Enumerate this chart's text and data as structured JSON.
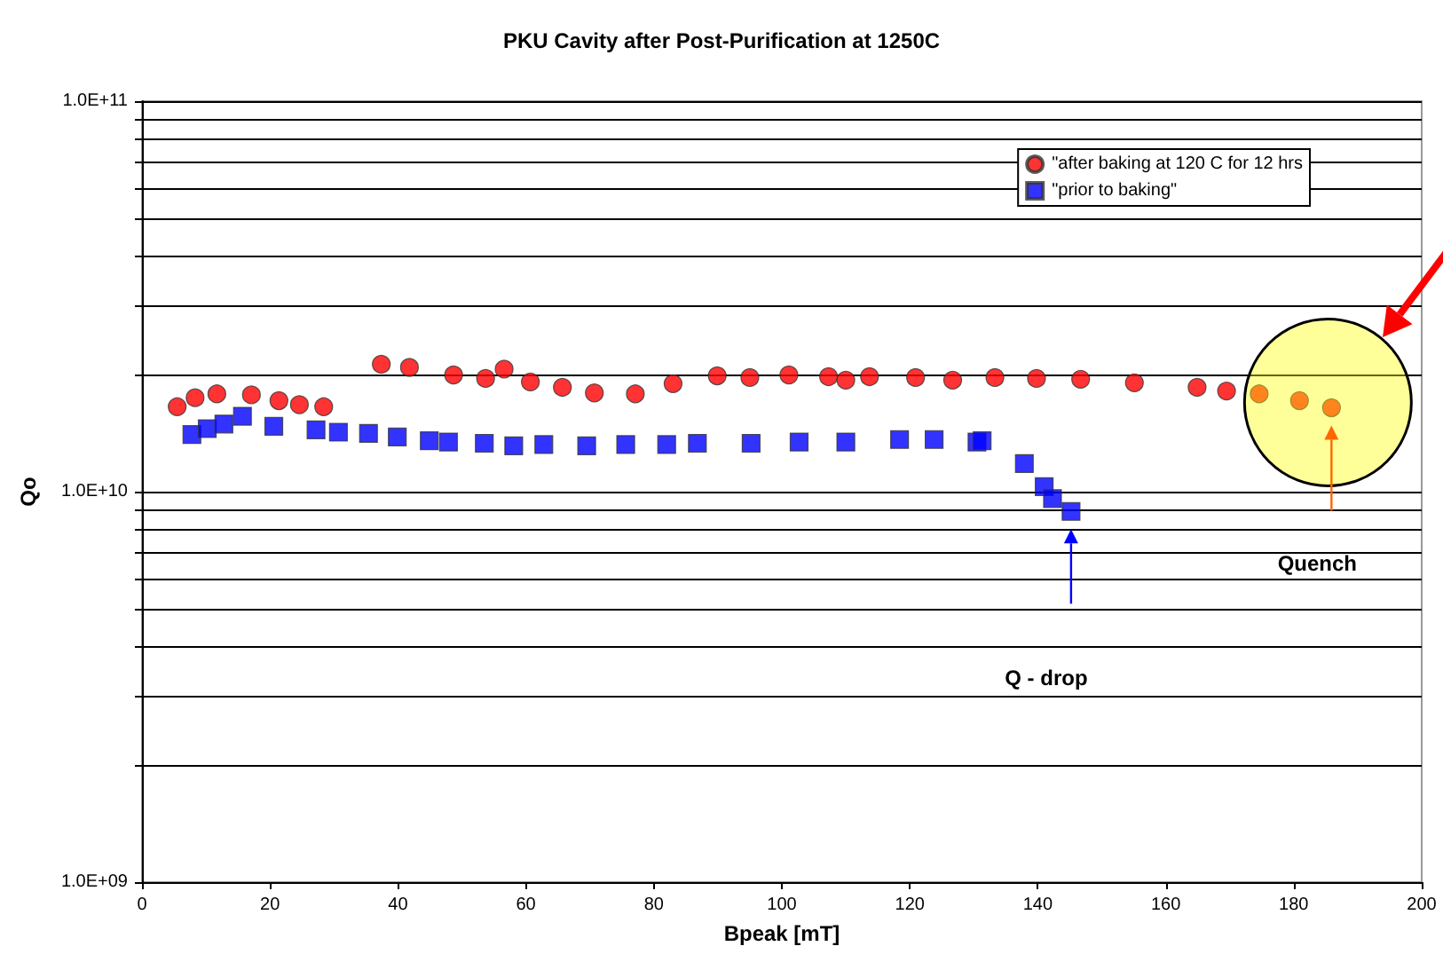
{
  "chart_data": {
    "type": "scatter",
    "title": "PKU Cavity after Post-Purification at 1250C",
    "xlabel": "Bpeak [mT]",
    "ylabel": "Qo",
    "series": [
      {
        "name": "\"after baking at 120 C for 12 hrs",
        "color": "#ff0000",
        "marker": "circle",
        "x": [
          5.5,
          8.3,
          11.7,
          17.1,
          21.4,
          24.6,
          28.4,
          37.4,
          41.8,
          48.7,
          53.7,
          56.6,
          60.7,
          65.7,
          70.7,
          77.1,
          83.0,
          89.9,
          95.0,
          101.1,
          107.3,
          110.0,
          113.7,
          120.9,
          126.7,
          133.3,
          139.8,
          146.7,
          155.1,
          164.9,
          169.5,
          174.6,
          180.9,
          185.9
        ],
        "values": [
          16500000000.0,
          17400000000.0,
          17800000000.0,
          17700000000.0,
          17100000000.0,
          16700000000.0,
          16500000000.0,
          21200000000.0,
          20800000000.0,
          19900000000.0,
          19500000000.0,
          20600000000.0,
          19100000000.0,
          18500000000.0,
          17900000000.0,
          17800000000.0,
          18900000000.0,
          19800000000.0,
          19600000000.0,
          19900000000.0,
          19700000000.0,
          19300000000.0,
          19700000000.0,
          19600000000.0,
          19300000000.0,
          19600000000.0,
          19500000000.0,
          19400000000.0,
          19000000000.0,
          18500000000.0,
          18100000000.0,
          17800000000.0,
          17100000000.0,
          16400000000.0
        ]
      },
      {
        "name": "\"prior to baking\"",
        "color": "#0000ff",
        "marker": "square",
        "x": [
          7.8,
          10.2,
          12.8,
          15.7,
          20.6,
          27.2,
          30.7,
          35.4,
          39.9,
          44.9,
          47.9,
          53.5,
          58.1,
          62.8,
          69.5,
          75.6,
          82.0,
          86.8,
          95.2,
          102.7,
          110.0,
          118.4,
          123.8,
          130.5,
          131.3,
          137.9,
          141.0,
          142.3,
          145.2
        ],
        "values": [
          14000000000.0,
          14500000000.0,
          14900000000.0,
          15600000000.0,
          14700000000.0,
          14400000000.0,
          14200000000.0,
          14100000000.0,
          13800000000.0,
          13500000000.0,
          13400000000.0,
          13300000000.0,
          13100000000.0,
          13200000000.0,
          13100000000.0,
          13200000000.0,
          13200000000.0,
          13300000000.0,
          13300000000.0,
          13400000000.0,
          13400000000.0,
          13600000000.0,
          13600000000.0,
          13400000000.0,
          13500000000.0,
          11800000000.0,
          10300000000.0,
          9600000000.0,
          8900000000.0
        ]
      }
    ],
    "annotations": [
      "Quench",
      "Q - drop"
    ],
    "xlim": [
      0,
      200
    ],
    "xticks": [
      0,
      20,
      40,
      60,
      80,
      100,
      120,
      140,
      160,
      180,
      200
    ],
    "ylim": [
      1000000000.0,
      100000000000.0
    ],
    "yticks": [
      {
        "value": 1000000000.0,
        "label": "1.0E+09"
      },
      {
        "value": 2000000000.0,
        "label": null
      },
      {
        "value": 3000000000.0,
        "label": null
      },
      {
        "value": 4000000000.0,
        "label": null
      },
      {
        "value": 5000000000.0,
        "label": null
      },
      {
        "value": 6000000000.0,
        "label": null
      },
      {
        "value": 7000000000.0,
        "label": null
      },
      {
        "value": 8000000000.0,
        "label": null
      },
      {
        "value": 9000000000.0,
        "label": null
      },
      {
        "value": 10000000000.0,
        "label": "1.0E+10"
      },
      {
        "value": 20000000000.0,
        "label": null
      },
      {
        "value": 30000000000.0,
        "label": null
      },
      {
        "value": 40000000000.0,
        "label": null
      },
      {
        "value": 50000000000.0,
        "label": null
      },
      {
        "value": 60000000000.0,
        "label": null
      },
      {
        "value": 70000000000.0,
        "label": null
      },
      {
        "value": 80000000000.0,
        "label": null
      },
      {
        "value": 90000000000.0,
        "label": null
      },
      {
        "value": 100000000000.0,
        "label": "1.0E+11"
      }
    ],
    "log": "y",
    "grid": "y",
    "legend": "top right"
  }
}
